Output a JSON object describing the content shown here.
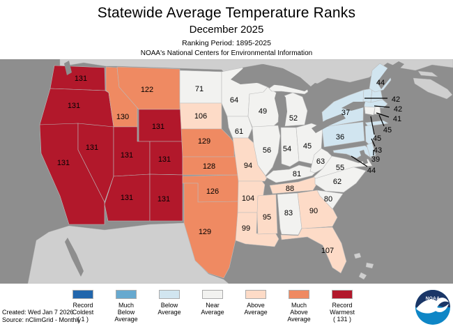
{
  "header": {
    "title": "Statewide Average Temperature Ranks",
    "subtitle": "December 2025",
    "ranking_period": "Ranking Period: 1895-2025",
    "organization": "NOAA's National Centers for Environmental Information"
  },
  "footer": {
    "created": "Created: Wed Jan 7 2026",
    "source": "Source: nClimGrid - Monthly"
  },
  "logo": {
    "text": "NOAA"
  },
  "colors": {
    "record_coldest": "#2166AC",
    "much_below": "#67A9CF",
    "below": "#D1E5F0",
    "near": "#F2F2F0",
    "above": "#FDDBC7",
    "much_above": "#EF8A62",
    "record_warmest": "#B2182B",
    "ocean": "#8E8E8E",
    "foreign_land": "#CFCFCF",
    "state_border": "#BBBBBB"
  },
  "legend": [
    {
      "lines": [
        "Record",
        "Coldest",
        "( 1 )"
      ],
      "category": "record_coldest"
    },
    {
      "lines": [
        "Much",
        "Below",
        "Average"
      ],
      "category": "much_below"
    },
    {
      "lines": [
        "Below",
        "Average"
      ],
      "category": "below"
    },
    {
      "lines": [
        "Near",
        "Average"
      ],
      "category": "near"
    },
    {
      "lines": [
        "Above",
        "Average"
      ],
      "category": "above"
    },
    {
      "lines": [
        "Much",
        "Above",
        "Average"
      ],
      "category": "much_above"
    },
    {
      "lines": [
        "Record",
        "Warmest",
        "( 131 )"
      ],
      "category": "record_warmest"
    }
  ],
  "chart_data": {
    "type": "heatmap",
    "subtype": "us-choropleth-state-ranks",
    "title": "Statewide Average Temperature Ranks",
    "period": "December 2025",
    "ranking_period": "1895-2025",
    "rank_range": [
      1,
      131
    ],
    "legend_position": "bottom",
    "states": [
      {
        "state": "WA",
        "rank": 131,
        "category": "record_warmest"
      },
      {
        "state": "OR",
        "rank": 131,
        "category": "record_warmest"
      },
      {
        "state": "CA",
        "rank": 131,
        "category": "record_warmest"
      },
      {
        "state": "NV",
        "rank": 131,
        "category": "record_warmest"
      },
      {
        "state": "WY",
        "rank": 131,
        "category": "record_warmest"
      },
      {
        "state": "UT",
        "rank": 131,
        "category": "record_warmest"
      },
      {
        "state": "CO",
        "rank": 131,
        "category": "record_warmest"
      },
      {
        "state": "AZ",
        "rank": 131,
        "category": "record_warmest"
      },
      {
        "state": "NM",
        "rank": 131,
        "category": "record_warmest"
      },
      {
        "state": "ID",
        "rank": 130,
        "category": "much_above"
      },
      {
        "state": "MT",
        "rank": 122,
        "category": "much_above"
      },
      {
        "state": "NE",
        "rank": 129,
        "category": "much_above"
      },
      {
        "state": "KS",
        "rank": 128,
        "category": "much_above"
      },
      {
        "state": "OK",
        "rank": 126,
        "category": "much_above"
      },
      {
        "state": "TX",
        "rank": 129,
        "category": "much_above"
      },
      {
        "state": "SD",
        "rank": 106,
        "category": "above"
      },
      {
        "state": "MO",
        "rank": 94,
        "category": "above"
      },
      {
        "state": "AR",
        "rank": 104,
        "category": "above"
      },
      {
        "state": "LA",
        "rank": 99,
        "category": "above"
      },
      {
        "state": "MS",
        "rank": 95,
        "category": "above"
      },
      {
        "state": "TN",
        "rank": 88,
        "category": "above"
      },
      {
        "state": "GA",
        "rank": 90,
        "category": "above"
      },
      {
        "state": "FL",
        "rank": 107,
        "category": "above"
      },
      {
        "state": "ND",
        "rank": 71,
        "category": "near"
      },
      {
        "state": "MN",
        "rank": 64,
        "category": "near"
      },
      {
        "state": "IA",
        "rank": 61,
        "category": "near"
      },
      {
        "state": "WI",
        "rank": 49,
        "category": "near"
      },
      {
        "state": "MI",
        "rank": 52,
        "category": "near"
      },
      {
        "state": "IL",
        "rank": 56,
        "category": "near"
      },
      {
        "state": "IN",
        "rank": 54,
        "category": "near"
      },
      {
        "state": "OH",
        "rank": 45,
        "category": "near"
      },
      {
        "state": "KY",
        "rank": 81,
        "category": "near"
      },
      {
        "state": "AL",
        "rank": 83,
        "category": "near"
      },
      {
        "state": "WV",
        "rank": 63,
        "category": "near"
      },
      {
        "state": "VA",
        "rank": 55,
        "category": "near"
      },
      {
        "state": "NC",
        "rank": 62,
        "category": "near"
      },
      {
        "state": "SC",
        "rank": 80,
        "category": "near"
      },
      {
        "state": "CT",
        "rank": 45,
        "category": "near"
      },
      {
        "state": "RI",
        "rank": 45,
        "category": "near"
      },
      {
        "state": "NY",
        "rank": 37,
        "category": "below"
      },
      {
        "state": "PA",
        "rank": 36,
        "category": "below"
      },
      {
        "state": "ME",
        "rank": 44,
        "category": "below"
      },
      {
        "state": "VT",
        "rank": 42,
        "category": "below"
      },
      {
        "state": "NH",
        "rank": 42,
        "category": "below"
      },
      {
        "state": "MA",
        "rank": 41,
        "category": "below"
      },
      {
        "state": "NJ",
        "rank": 43,
        "category": "below"
      },
      {
        "state": "DE",
        "rank": 39,
        "category": "below"
      },
      {
        "state": "MD",
        "rank": 44,
        "category": "below"
      }
    ]
  }
}
